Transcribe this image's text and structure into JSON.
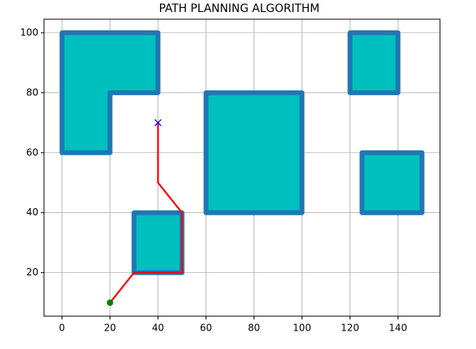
{
  "chart_data": {
    "type": "path-plan",
    "title": "PATH PLANNING ALGORITHM",
    "xlim": [
      -7.5,
      157.5
    ],
    "xticks": [
      0,
      20,
      40,
      60,
      80,
      100,
      120,
      140
    ],
    "ylim": [
      5.5,
      104.5
    ],
    "yticks": [
      20,
      40,
      60,
      80,
      100
    ],
    "grid": true,
    "obstacle_fill": "#00bfbf",
    "obstacle_edge": "#1f77b4",
    "obstacles": [
      {
        "x": [
          0,
          0,
          40,
          40,
          20,
          20
        ],
        "y": [
          60,
          100,
          100,
          80,
          80,
          60
        ]
      },
      {
        "x": [
          30,
          30,
          50,
          50
        ],
        "y": [
          20,
          40,
          40,
          20
        ]
      },
      {
        "x": [
          60,
          60,
          100,
          100
        ],
        "y": [
          40,
          80,
          80,
          40
        ]
      },
      {
        "x": [
          120,
          120,
          140,
          140
        ],
        "y": [
          80,
          100,
          100,
          80
        ]
      },
      {
        "x": [
          125,
          125,
          150,
          150
        ],
        "y": [
          40,
          60,
          60,
          40
        ]
      }
    ],
    "path": {
      "color": "#ff0000",
      "x": [
        20,
        30,
        50,
        50,
        40,
        40
      ],
      "y": [
        10,
        20,
        20,
        40,
        50,
        70
      ]
    },
    "start": {
      "x": 20,
      "y": 10,
      "color": "#008000"
    },
    "goal": {
      "x": 40,
      "y": 70,
      "color": "#0000ff"
    }
  }
}
